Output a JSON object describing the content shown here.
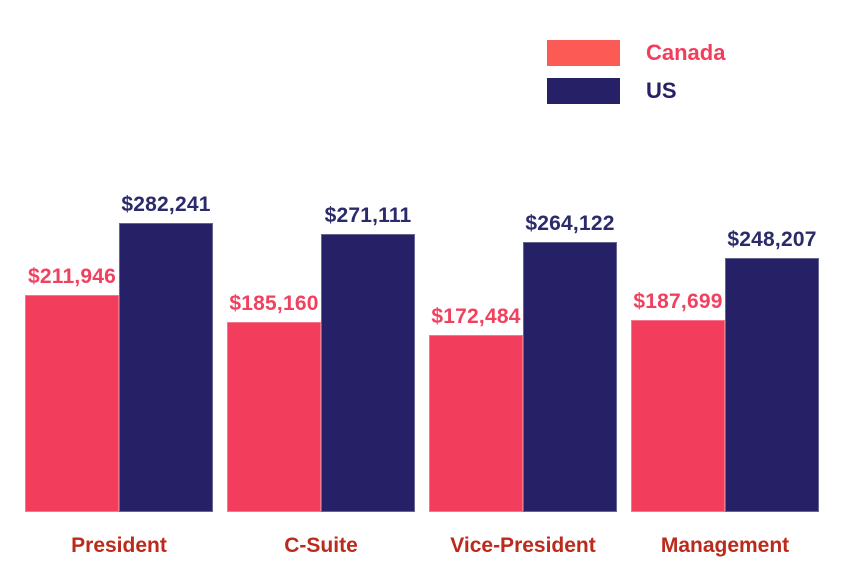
{
  "chart_data": {
    "type": "bar",
    "title": "",
    "xlabel": "",
    "ylabel": "",
    "categories": [
      "President",
      "C-Suite",
      "Vice-President",
      "Management"
    ],
    "series": [
      {
        "name": "Canada",
        "color": "#F23D5C",
        "label_color": "#F0415F",
        "values": [
          211946,
          185160,
          172484,
          187699
        ],
        "labels": [
          "$211,946",
          "$185,160",
          "$172,484",
          "$187,699"
        ]
      },
      {
        "name": "US",
        "color": "#262166",
        "label_color": "#2B2A6A",
        "values": [
          282241,
          271111,
          264122,
          248207
        ],
        "labels": [
          "$282,241",
          "$271,111",
          "$264,122",
          "$248,207"
        ]
      }
    ],
    "ylim": [
      0,
      290000
    ],
    "grid": false,
    "axes_visible": false,
    "legend_position": "top-right",
    "category_label_color": "#BB2A1B",
    "background_color": "#FFFFFF"
  },
  "legend": {
    "items": [
      {
        "label": "Canada",
        "swatch_color": "#FC5B55",
        "text_color": "#F23D5C"
      },
      {
        "label": "US",
        "swatch_color": "#262166",
        "text_color": "#262166"
      }
    ]
  }
}
